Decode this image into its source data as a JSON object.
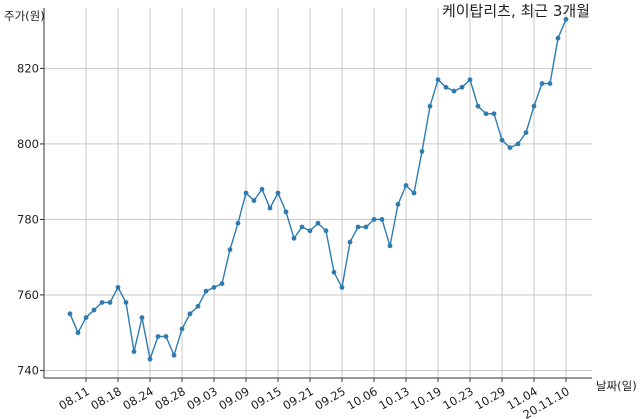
{
  "chart_data": {
    "type": "line",
    "title": "케이탑리츠, 최근 3개월",
    "ylabel": "주가(원)",
    "xlabel": "날짜(일)",
    "ylim": [
      738,
      836
    ],
    "yticks": [
      740,
      760,
      780,
      800,
      820
    ],
    "grid": true,
    "line_color": "#2e7bb0",
    "xtick_labels": [
      "08.11",
      "08.18",
      "08.24",
      "08.28",
      "09.03",
      "09.09",
      "09.15",
      "09.21",
      "09.25",
      "10.06",
      "10.13",
      "10.19",
      "10.23",
      "10.29",
      "11.04",
      "20.11.10"
    ],
    "xtick_positions": [
      2,
      6,
      10,
      14,
      18,
      22,
      26,
      30,
      34,
      38,
      42,
      46,
      50,
      54,
      58,
      62
    ],
    "series": [
      {
        "values": [
          755,
          750,
          754,
          756,
          758,
          758,
          762,
          758,
          745,
          754,
          743,
          749,
          749,
          744,
          751,
          755,
          757,
          761,
          762,
          763,
          772,
          779,
          787,
          785,
          788,
          783,
          787,
          782,
          775,
          778,
          777,
          779,
          777,
          766,
          762,
          774,
          778,
          778,
          780,
          780,
          773,
          784,
          789,
          787,
          798,
          810,
          817,
          815,
          814,
          815,
          817,
          810,
          808,
          808,
          801,
          799,
          800,
          803,
          810,
          816,
          816,
          828,
          833
        ]
      }
    ]
  }
}
